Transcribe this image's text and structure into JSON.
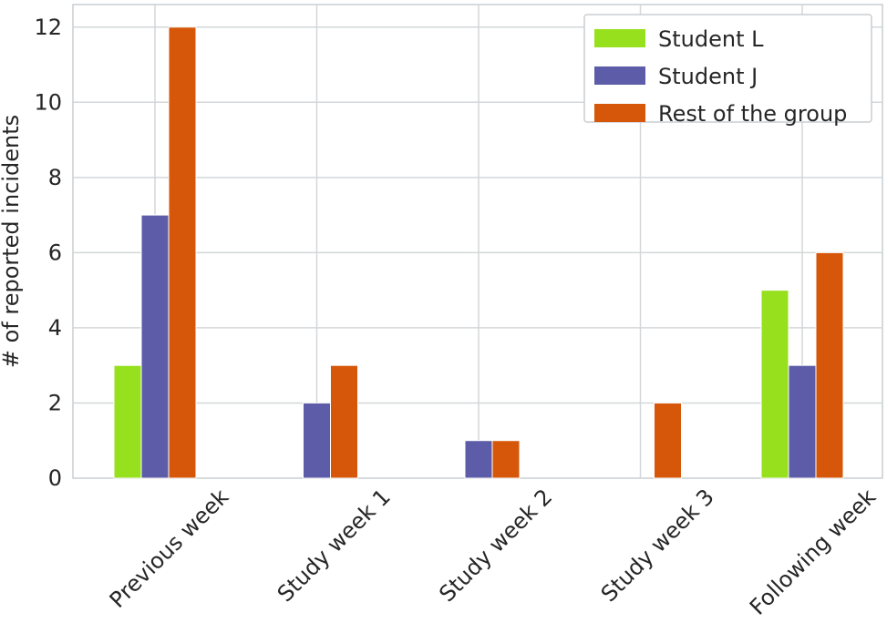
{
  "chart_data": {
    "type": "bar",
    "title": "",
    "xlabel": "",
    "ylabel": "# of reported incidents",
    "categories": [
      "Previous week",
      "Study week 1",
      "Study week 2",
      "Study week 3",
      "Following week"
    ],
    "series": [
      {
        "name": "Student L",
        "color": "#96e01e",
        "values": [
          3,
          0,
          0,
          0,
          5
        ]
      },
      {
        "name": "Student J",
        "color": "#5c5ca8",
        "values": [
          7,
          2,
          1,
          0,
          3
        ]
      },
      {
        "name": "Rest of the group",
        "color": "#d6570a",
        "values": [
          12,
          3,
          1,
          2,
          6
        ]
      }
    ],
    "ylim": [
      0,
      12.6
    ],
    "yticks": [
      0,
      2,
      4,
      6,
      8,
      10,
      12
    ],
    "grid": true,
    "legend_position": "top-right"
  }
}
